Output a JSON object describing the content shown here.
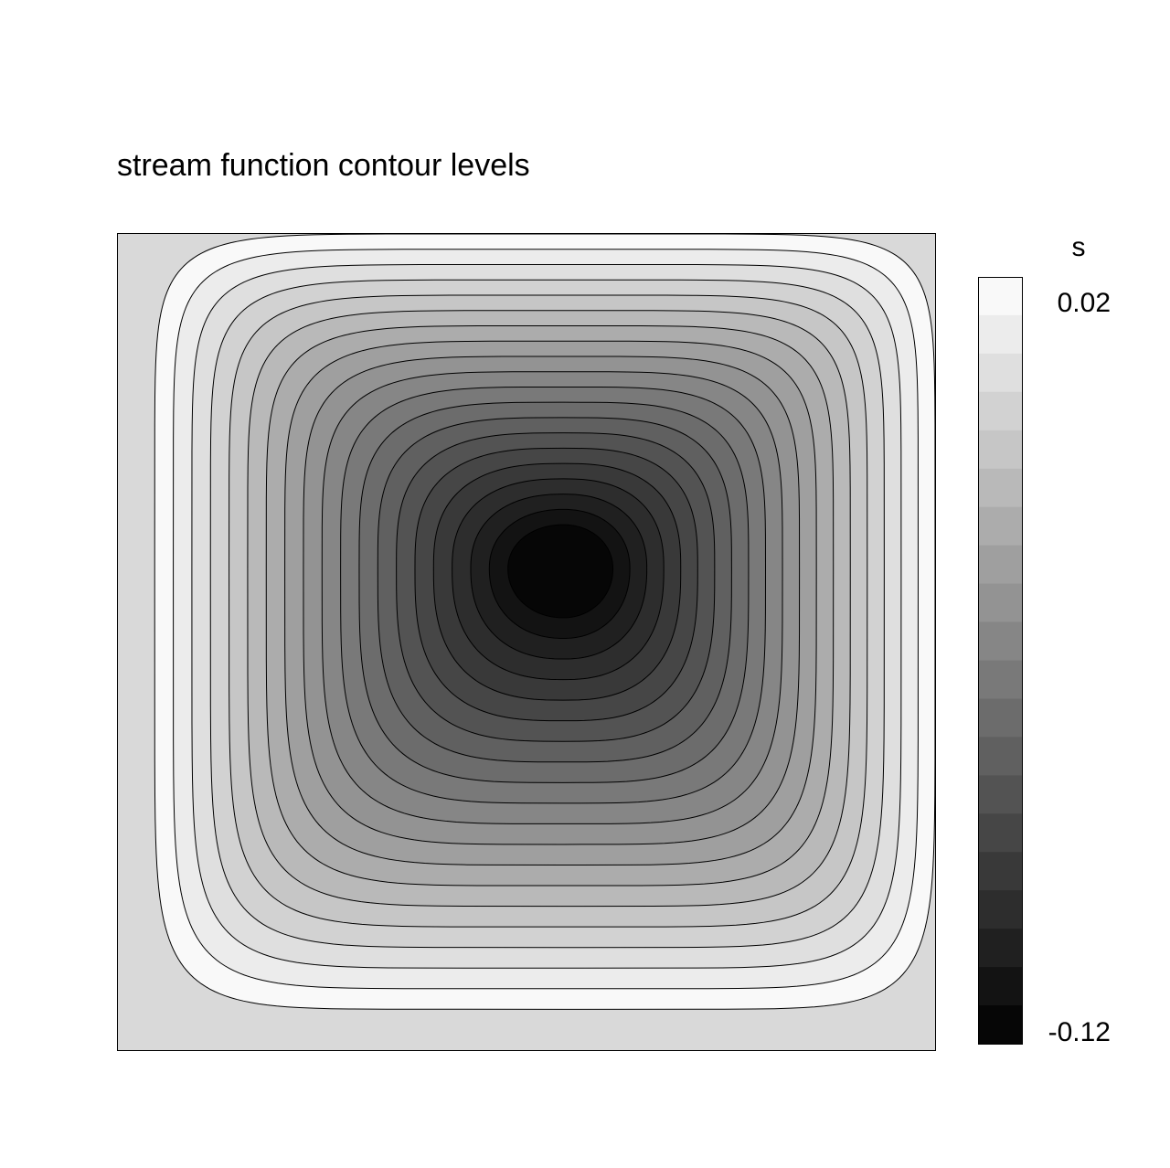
{
  "chart_data": {
    "type": "heatmap",
    "title": "stream function contour levels",
    "xlabel": "",
    "ylabel": "",
    "xlim": [
      0,
      1
    ],
    "ylim": [
      0,
      1
    ],
    "grid": false,
    "vortex_center": [
      0.545,
      0.59
    ],
    "levels": {
      "min": -0.12,
      "max": 0.02,
      "count": 20,
      "interval": 0.007
    },
    "colorbar": {
      "label": "s",
      "tick_labels": [
        "0.02",
        "-0.12"
      ],
      "placement": "right",
      "colormap": "grayscale",
      "color_at_min": "#000000",
      "color_at_max": "#ffffff"
    },
    "background_color": "#d9d9d9",
    "contour_line_color": "#000000"
  }
}
